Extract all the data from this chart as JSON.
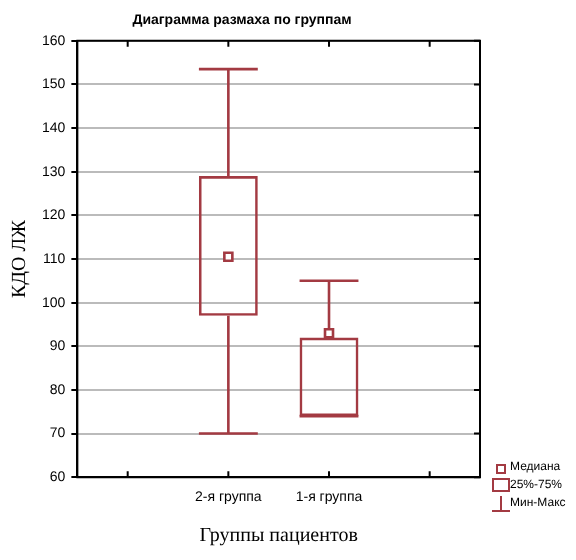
{
  "chart_data": {
    "type": "box",
    "title": "Диаграмма размаха по группам",
    "xlabel": "Группы пациентов",
    "ylabel": "КДО ЛЖ",
    "categories": [
      null,
      "2-я группа",
      "1-я группа",
      null
    ],
    "series": [
      {
        "color": "#a33a42",
        "boxes": [
          null,
          {
            "low": 70,
            "q1": 97,
            "median": 110.5,
            "q3": 129,
            "high": 153.5
          },
          {
            "low": 74,
            "q1": 74,
            "median": 93,
            "q3": 92,
            "high": 105
          },
          null
        ]
      }
    ],
    "ylim": [
      60,
      160
    ],
    "yticks": [
      60,
      70,
      80,
      90,
      100,
      110,
      120,
      130,
      140,
      150,
      160
    ],
    "grid": "y",
    "annotations": [
      "Медиана",
      "25%-75%",
      "Мин-Макс"
    ]
  }
}
